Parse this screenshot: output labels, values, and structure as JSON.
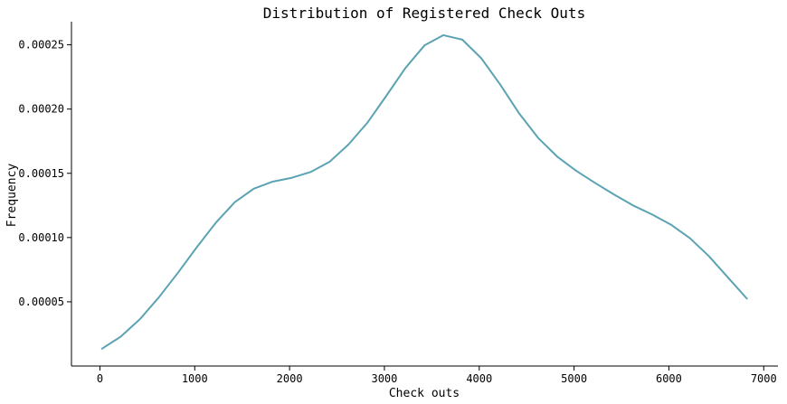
{
  "chart_data": {
    "type": "line",
    "title": "Distribution of Registered Check Outs",
    "xlabel": "Check outs",
    "ylabel": "Frequency",
    "xlim": [
      -300,
      7150
    ],
    "ylim": [
      0,
      0.000268
    ],
    "xticks": [
      0,
      1000,
      2000,
      3000,
      4000,
      5000,
      6000,
      7000
    ],
    "xtick_labels": [
      "0",
      "1000",
      "2000",
      "3000",
      "4000",
      "5000",
      "6000",
      "7000"
    ],
    "yticks": [
      5e-05,
      0.0001,
      0.00015,
      0.0002,
      0.00025
    ],
    "ytick_labels": [
      "0.00005",
      "0.00010",
      "0.00015",
      "0.00020",
      "0.00025"
    ],
    "grid": false,
    "line_color": "#5ba3b3",
    "series": [
      {
        "x": [
          22,
          222,
          422,
          622,
          822,
          1022,
          1222,
          1422,
          1622,
          1822,
          2022,
          2222,
          2422,
          2622,
          2822,
          3022,
          3222,
          3422,
          3622,
          3822,
          4022,
          4222,
          4422,
          4622,
          4822,
          5022,
          5222,
          5422,
          5622,
          5822,
          6022,
          6222,
          6422,
          6622,
          6822
        ],
        "y": [
          1.35e-05,
          2.3e-05,
          3.65e-05,
          5.35e-05,
          7.25e-05,
          9.25e-05,
          0.0001115,
          0.0001275,
          0.000138,
          0.0001435,
          0.0001465,
          0.000151,
          0.000159,
          0.0001725,
          0.0001895,
          0.0002105,
          0.000232,
          0.0002495,
          0.0002575,
          0.000254,
          0.0002395,
          0.000219,
          0.0001965,
          0.0001775,
          0.000163,
          0.000152,
          0.0001425,
          0.0001335,
          0.000125,
          0.000118,
          0.00011,
          9.95e-05,
          8.55e-05,
          6.9e-05,
          5.25e-05
        ]
      }
    ]
  }
}
